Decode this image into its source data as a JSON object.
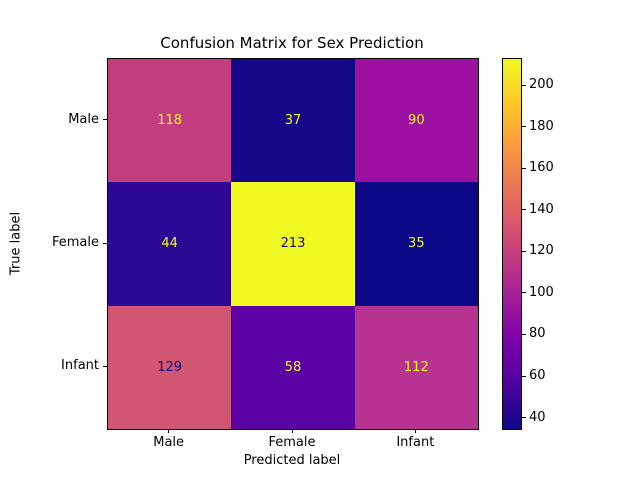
{
  "chart_data": {
    "type": "heatmap",
    "title": "Confusion Matrix for Sex Prediction",
    "xlabel": "Predicted label",
    "ylabel": "True label",
    "x_categories": [
      "Male",
      "Female",
      "Infant"
    ],
    "y_categories": [
      "Male",
      "Female",
      "Infant"
    ],
    "matrix": [
      [
        118,
        37,
        90
      ],
      [
        44,
        213,
        35
      ],
      [
        129,
        58,
        112
      ]
    ],
    "vmin": 35,
    "vmax": 213,
    "colormap": "plasma",
    "colorbar_ticks": [
      40,
      60,
      80,
      100,
      120,
      140,
      160,
      180,
      200
    ],
    "cell_colors": [
      [
        "#c33d7e",
        "#150889",
        "#9c11a1"
      ],
      [
        "#2d0894",
        "#f0f921",
        "#0d0887"
      ],
      [
        "#d05672",
        "#5a02a3",
        "#b73391"
      ]
    ],
    "cell_text_colors": [
      [
        "#f0f921",
        "#f0f921",
        "#f0f921"
      ],
      [
        "#f0f921",
        "#0d0887",
        "#f0f921"
      ],
      [
        "#0d0887",
        "#f0f921",
        "#f0f921"
      ]
    ],
    "colorbar_gradient": [
      [
        0.0,
        "#0d0887"
      ],
      [
        0.125,
        "#5002a2"
      ],
      [
        0.25,
        "#7e03a8"
      ],
      [
        0.375,
        "#aa2395"
      ],
      [
        0.5,
        "#cc4778"
      ],
      [
        0.625,
        "#e56b5d"
      ],
      [
        0.75,
        "#f89540"
      ],
      [
        0.875,
        "#fdc527"
      ],
      [
        1.0,
        "#f0f921"
      ]
    ],
    "grid": false,
    "legend": "colorbar-right"
  }
}
